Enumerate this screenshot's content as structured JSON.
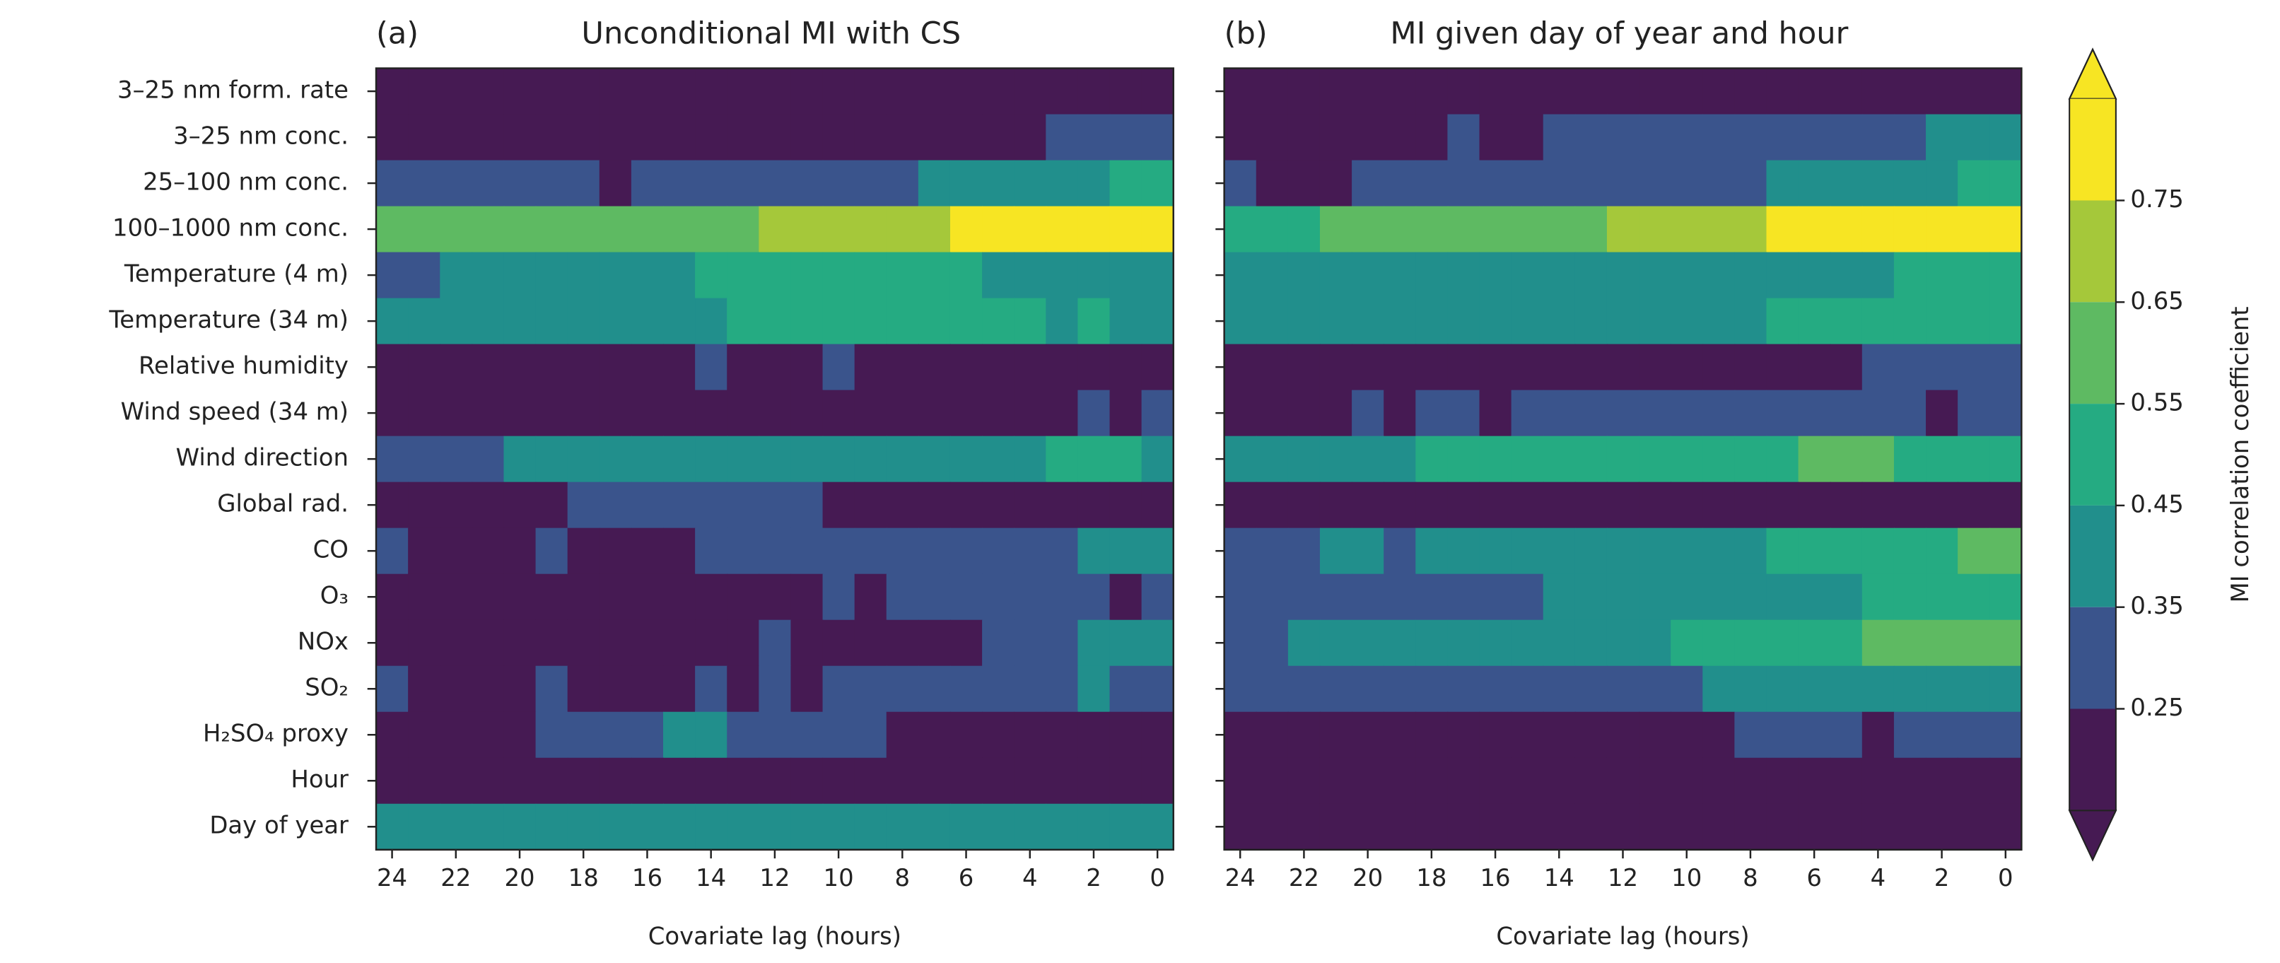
{
  "chart_data": {
    "type": "heatmap",
    "row_labels": [
      "3–25 nm form. rate",
      "3–25 nm conc.",
      "25–100 nm conc.",
      "100–1000 nm conc.",
      "Temperature (4 m)",
      "Temperature (34 m)",
      "Relative humidity",
      "Wind speed (34 m)",
      "Wind direction",
      "Global rad.",
      "CO",
      "O₃",
      "NOx",
      "SO₂",
      "H₂SO₄ proxy",
      "Hour",
      "Day of year"
    ],
    "x": [
      24,
      23,
      22,
      21,
      20,
      19,
      18,
      17,
      16,
      15,
      14,
      13,
      12,
      11,
      10,
      9,
      8,
      7,
      6,
      5,
      4,
      3,
      2,
      1,
      0
    ],
    "xtick_labels": [
      "24",
      "22",
      "20",
      "18",
      "16",
      "14",
      "12",
      "10",
      "8",
      "6",
      "4",
      "2",
      "0"
    ],
    "note_values": "values are bin midpoints; 0.2 means below 0.25, 0.8 means above 0.75",
    "panels": [
      {
        "label": "(a)",
        "title": "Unconditional MI with CS",
        "xlabel": "Covariate lag (hours)",
        "values": [
          [
            0.2,
            0.2,
            0.2,
            0.2,
            0.2,
            0.2,
            0.2,
            0.2,
            0.2,
            0.2,
            0.2,
            0.2,
            0.2,
            0.2,
            0.2,
            0.2,
            0.2,
            0.2,
            0.2,
            0.2,
            0.2,
            0.2,
            0.2,
            0.2,
            0.2
          ],
          [
            0.2,
            0.2,
            0.2,
            0.2,
            0.2,
            0.2,
            0.2,
            0.2,
            0.2,
            0.2,
            0.2,
            0.2,
            0.2,
            0.2,
            0.2,
            0.2,
            0.2,
            0.2,
            0.2,
            0.2,
            0.2,
            0.3,
            0.3,
            0.3,
            0.3
          ],
          [
            0.3,
            0.3,
            0.3,
            0.3,
            0.3,
            0.3,
            0.3,
            0.2,
            0.3,
            0.3,
            0.3,
            0.3,
            0.3,
            0.3,
            0.3,
            0.3,
            0.3,
            0.4,
            0.4,
            0.4,
            0.4,
            0.4,
            0.4,
            0.5,
            0.5
          ],
          [
            0.6,
            0.6,
            0.6,
            0.6,
            0.6,
            0.6,
            0.6,
            0.6,
            0.6,
            0.6,
            0.6,
            0.6,
            0.7,
            0.7,
            0.7,
            0.7,
            0.7,
            0.7,
            0.8,
            0.8,
            0.8,
            0.8,
            0.8,
            0.8,
            0.8
          ],
          [
            0.3,
            0.3,
            0.4,
            0.4,
            0.4,
            0.4,
            0.4,
            0.4,
            0.4,
            0.4,
            0.5,
            0.5,
            0.5,
            0.5,
            0.5,
            0.5,
            0.5,
            0.5,
            0.5,
            0.4,
            0.4,
            0.4,
            0.4,
            0.4,
            0.4
          ],
          [
            0.4,
            0.4,
            0.4,
            0.4,
            0.4,
            0.4,
            0.4,
            0.4,
            0.4,
            0.4,
            0.4,
            0.5,
            0.5,
            0.5,
            0.5,
            0.5,
            0.5,
            0.5,
            0.5,
            0.5,
            0.5,
            0.4,
            0.5,
            0.4,
            0.4
          ],
          [
            0.2,
            0.2,
            0.2,
            0.2,
            0.2,
            0.2,
            0.2,
            0.2,
            0.2,
            0.2,
            0.3,
            0.2,
            0.2,
            0.2,
            0.3,
            0.2,
            0.2,
            0.2,
            0.2,
            0.2,
            0.2,
            0.2,
            0.2,
            0.2,
            0.2
          ],
          [
            0.2,
            0.2,
            0.2,
            0.2,
            0.2,
            0.2,
            0.2,
            0.2,
            0.2,
            0.2,
            0.2,
            0.2,
            0.2,
            0.2,
            0.2,
            0.2,
            0.2,
            0.2,
            0.2,
            0.2,
            0.2,
            0.2,
            0.3,
            0.2,
            0.3
          ],
          [
            0.3,
            0.3,
            0.3,
            0.3,
            0.4,
            0.4,
            0.4,
            0.4,
            0.4,
            0.4,
            0.4,
            0.4,
            0.4,
            0.4,
            0.4,
            0.4,
            0.4,
            0.4,
            0.4,
            0.4,
            0.4,
            0.5,
            0.5,
            0.5,
            0.4
          ],
          [
            0.2,
            0.2,
            0.2,
            0.2,
            0.2,
            0.2,
            0.3,
            0.3,
            0.3,
            0.3,
            0.3,
            0.3,
            0.3,
            0.3,
            0.2,
            0.2,
            0.2,
            0.2,
            0.2,
            0.2,
            0.2,
            0.2,
            0.2,
            0.2,
            0.2
          ],
          [
            0.3,
            0.2,
            0.2,
            0.2,
            0.2,
            0.3,
            0.2,
            0.2,
            0.2,
            0.2,
            0.3,
            0.3,
            0.3,
            0.3,
            0.3,
            0.3,
            0.3,
            0.3,
            0.3,
            0.3,
            0.3,
            0.3,
            0.4,
            0.4,
            0.4
          ],
          [
            0.2,
            0.2,
            0.2,
            0.2,
            0.2,
            0.2,
            0.2,
            0.2,
            0.2,
            0.2,
            0.2,
            0.2,
            0.2,
            0.2,
            0.3,
            0.2,
            0.3,
            0.3,
            0.3,
            0.3,
            0.3,
            0.3,
            0.3,
            0.2,
            0.3
          ],
          [
            0.2,
            0.2,
            0.2,
            0.2,
            0.2,
            0.2,
            0.2,
            0.2,
            0.2,
            0.2,
            0.2,
            0.2,
            0.3,
            0.2,
            0.2,
            0.2,
            0.2,
            0.2,
            0.2,
            0.3,
            0.3,
            0.3,
            0.4,
            0.4,
            0.4
          ],
          [
            0.3,
            0.2,
            0.2,
            0.2,
            0.2,
            0.3,
            0.2,
            0.2,
            0.2,
            0.2,
            0.3,
            0.2,
            0.3,
            0.2,
            0.3,
            0.3,
            0.3,
            0.3,
            0.3,
            0.3,
            0.3,
            0.3,
            0.4,
            0.3,
            0.3
          ],
          [
            0.2,
            0.2,
            0.2,
            0.2,
            0.2,
            0.3,
            0.3,
            0.3,
            0.3,
            0.4,
            0.4,
            0.3,
            0.3,
            0.3,
            0.3,
            0.3,
            0.2,
            0.2,
            0.2,
            0.2,
            0.2,
            0.2,
            0.2,
            0.2,
            0.2
          ],
          [
            0.2,
            0.2,
            0.2,
            0.2,
            0.2,
            0.2,
            0.2,
            0.2,
            0.2,
            0.2,
            0.2,
            0.2,
            0.2,
            0.2,
            0.2,
            0.2,
            0.2,
            0.2,
            0.2,
            0.2,
            0.2,
            0.2,
            0.2,
            0.2,
            0.2
          ],
          [
            0.4,
            0.4,
            0.4,
            0.4,
            0.4,
            0.4,
            0.4,
            0.4,
            0.4,
            0.4,
            0.4,
            0.4,
            0.4,
            0.4,
            0.4,
            0.4,
            0.4,
            0.4,
            0.4,
            0.4,
            0.4,
            0.4,
            0.4,
            0.4,
            0.4
          ]
        ]
      },
      {
        "label": "(b)",
        "title": "MI given day of year and hour",
        "xlabel": "Covariate lag (hours)",
        "values": [
          [
            0.2,
            0.2,
            0.2,
            0.2,
            0.2,
            0.2,
            0.2,
            0.2,
            0.2,
            0.2,
            0.2,
            0.2,
            0.2,
            0.2,
            0.2,
            0.2,
            0.2,
            0.2,
            0.2,
            0.2,
            0.2,
            0.2,
            0.2,
            0.2,
            0.2
          ],
          [
            0.2,
            0.2,
            0.2,
            0.2,
            0.2,
            0.2,
            0.2,
            0.3,
            0.2,
            0.2,
            0.3,
            0.3,
            0.3,
            0.3,
            0.3,
            0.3,
            0.3,
            0.3,
            0.3,
            0.3,
            0.3,
            0.3,
            0.4,
            0.4,
            0.4
          ],
          [
            0.3,
            0.2,
            0.2,
            0.2,
            0.3,
            0.3,
            0.3,
            0.3,
            0.3,
            0.3,
            0.3,
            0.3,
            0.3,
            0.3,
            0.3,
            0.3,
            0.3,
            0.4,
            0.4,
            0.4,
            0.4,
            0.4,
            0.4,
            0.5,
            0.5
          ],
          [
            0.5,
            0.5,
            0.5,
            0.6,
            0.6,
            0.6,
            0.6,
            0.6,
            0.6,
            0.6,
            0.6,
            0.6,
            0.7,
            0.7,
            0.7,
            0.7,
            0.7,
            0.8,
            0.8,
            0.8,
            0.8,
            0.8,
            0.8,
            0.8,
            0.8
          ],
          [
            0.4,
            0.4,
            0.4,
            0.4,
            0.4,
            0.4,
            0.4,
            0.4,
            0.4,
            0.4,
            0.4,
            0.4,
            0.4,
            0.4,
            0.4,
            0.4,
            0.4,
            0.4,
            0.4,
            0.4,
            0.4,
            0.5,
            0.5,
            0.5,
            0.5
          ],
          [
            0.4,
            0.4,
            0.4,
            0.4,
            0.4,
            0.4,
            0.4,
            0.4,
            0.4,
            0.4,
            0.4,
            0.4,
            0.4,
            0.4,
            0.4,
            0.4,
            0.4,
            0.5,
            0.5,
            0.5,
            0.5,
            0.5,
            0.5,
            0.5,
            0.5
          ],
          [
            0.2,
            0.2,
            0.2,
            0.2,
            0.2,
            0.2,
            0.2,
            0.2,
            0.2,
            0.2,
            0.2,
            0.2,
            0.2,
            0.2,
            0.2,
            0.2,
            0.2,
            0.2,
            0.2,
            0.2,
            0.3,
            0.3,
            0.3,
            0.3,
            0.3
          ],
          [
            0.2,
            0.2,
            0.2,
            0.2,
            0.3,
            0.2,
            0.3,
            0.3,
            0.2,
            0.3,
            0.3,
            0.3,
            0.3,
            0.3,
            0.3,
            0.3,
            0.3,
            0.3,
            0.3,
            0.3,
            0.3,
            0.3,
            0.2,
            0.3,
            0.3
          ],
          [
            0.4,
            0.4,
            0.4,
            0.4,
            0.4,
            0.4,
            0.5,
            0.5,
            0.5,
            0.5,
            0.5,
            0.5,
            0.5,
            0.5,
            0.5,
            0.5,
            0.5,
            0.5,
            0.6,
            0.6,
            0.6,
            0.5,
            0.5,
            0.5,
            0.5
          ],
          [
            0.2,
            0.2,
            0.2,
            0.2,
            0.2,
            0.2,
            0.2,
            0.2,
            0.2,
            0.2,
            0.2,
            0.2,
            0.2,
            0.2,
            0.2,
            0.2,
            0.2,
            0.2,
            0.2,
            0.2,
            0.2,
            0.2,
            0.2,
            0.2,
            0.2
          ],
          [
            0.3,
            0.3,
            0.3,
            0.4,
            0.4,
            0.3,
            0.4,
            0.4,
            0.4,
            0.4,
            0.4,
            0.4,
            0.4,
            0.4,
            0.4,
            0.4,
            0.4,
            0.5,
            0.5,
            0.5,
            0.5,
            0.5,
            0.5,
            0.6,
            0.6
          ],
          [
            0.3,
            0.3,
            0.3,
            0.3,
            0.3,
            0.3,
            0.3,
            0.3,
            0.3,
            0.3,
            0.4,
            0.4,
            0.4,
            0.4,
            0.4,
            0.4,
            0.4,
            0.4,
            0.4,
            0.4,
            0.5,
            0.5,
            0.5,
            0.5,
            0.5
          ],
          [
            0.3,
            0.3,
            0.4,
            0.4,
            0.4,
            0.4,
            0.4,
            0.4,
            0.4,
            0.4,
            0.4,
            0.4,
            0.4,
            0.4,
            0.5,
            0.5,
            0.5,
            0.5,
            0.5,
            0.5,
            0.6,
            0.6,
            0.6,
            0.6,
            0.6
          ],
          [
            0.3,
            0.3,
            0.3,
            0.3,
            0.3,
            0.3,
            0.3,
            0.3,
            0.3,
            0.3,
            0.3,
            0.3,
            0.3,
            0.3,
            0.3,
            0.4,
            0.4,
            0.4,
            0.4,
            0.4,
            0.4,
            0.4,
            0.4,
            0.4,
            0.4
          ],
          [
            0.2,
            0.2,
            0.2,
            0.2,
            0.2,
            0.2,
            0.2,
            0.2,
            0.2,
            0.2,
            0.2,
            0.2,
            0.2,
            0.2,
            0.2,
            0.2,
            0.3,
            0.3,
            0.3,
            0.3,
            0.2,
            0.3,
            0.3,
            0.3,
            0.3
          ],
          [
            0.2,
            0.2,
            0.2,
            0.2,
            0.2,
            0.2,
            0.2,
            0.2,
            0.2,
            0.2,
            0.2,
            0.2,
            0.2,
            0.2,
            0.2,
            0.2,
            0.2,
            0.2,
            0.2,
            0.2,
            0.2,
            0.2,
            0.2,
            0.2,
            0.2
          ],
          [
            0.2,
            0.2,
            0.2,
            0.2,
            0.2,
            0.2,
            0.2,
            0.2,
            0.2,
            0.2,
            0.2,
            0.2,
            0.2,
            0.2,
            0.2,
            0.2,
            0.2,
            0.2,
            0.2,
            0.2,
            0.2,
            0.2,
            0.2,
            0.2,
            0.2
          ]
        ]
      }
    ],
    "colorbar": {
      "label": "MI correlation coefficient",
      "boundaries": [
        0.25,
        0.35,
        0.45,
        0.55,
        0.65,
        0.75
      ],
      "tick_labels": [
        "0.25",
        "0.35",
        "0.45",
        "0.55",
        "0.65",
        "0.75"
      ],
      "extend": "both",
      "colors": [
        "#461a53",
        "#3a548c",
        "#218f8c",
        "#25ab82",
        "#5eba62",
        "#a5c83a",
        "#f7e523"
      ]
    }
  }
}
